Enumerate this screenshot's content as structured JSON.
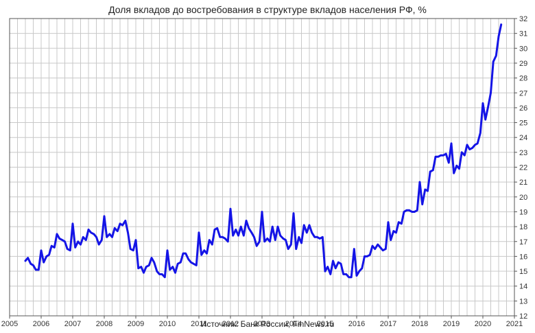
{
  "title": "Доля вкладов до востребования в структуре вкладов населения РФ, %",
  "source": "Источник: Банк России, FinNews.ru",
  "colors": {
    "line": "#1414e6",
    "grid": "#c8c8c8",
    "axis": "#555555"
  },
  "chart_data": {
    "type": "line",
    "title": "Доля вкладов до востребования в структуре вкладов населения РФ, %",
    "xlabel": "",
    "ylabel": "",
    "xlim": [
      2005,
      2021
    ],
    "ylim": [
      12,
      32
    ],
    "y_axis_side": "right",
    "grid": true,
    "x_ticks": [
      "2005",
      "2006",
      "2007",
      "2008",
      "2009",
      "2010",
      "2011",
      "2012",
      "2013",
      "2014",
      "2015",
      "2016",
      "2017",
      "2018",
      "2019",
      "2020",
      "2021"
    ],
    "y_ticks": [
      "12",
      "13",
      "14",
      "15",
      "16",
      "17",
      "18",
      "19",
      "20",
      "21",
      "22",
      "23",
      "24",
      "25",
      "26",
      "27",
      "28",
      "29",
      "30",
      "31",
      "32"
    ],
    "series": [
      {
        "x": [
          2005.5,
          2005.58,
          2005.67,
          2005.75,
          2005.83,
          2005.92,
          2006.0,
          2006.08,
          2006.17,
          2006.25,
          2006.33,
          2006.42,
          2006.5,
          2006.58,
          2006.67,
          2006.75,
          2006.83,
          2006.92,
          2007.0,
          2007.08,
          2007.17,
          2007.25,
          2007.33,
          2007.42,
          2007.5,
          2007.58,
          2007.67,
          2007.75,
          2007.83,
          2007.92,
          2008.0,
          2008.08,
          2008.17,
          2008.25,
          2008.33,
          2008.42,
          2008.5,
          2008.58,
          2008.67,
          2008.75,
          2008.83,
          2008.92,
          2009.0,
          2009.08,
          2009.17,
          2009.25,
          2009.33,
          2009.42,
          2009.5,
          2009.58,
          2009.67,
          2009.75,
          2009.83,
          2009.92,
          2010.0,
          2010.08,
          2010.17,
          2010.25,
          2010.33,
          2010.42,
          2010.5,
          2010.58,
          2010.67,
          2010.75,
          2010.83,
          2010.92,
          2011.0,
          2011.08,
          2011.17,
          2011.25,
          2011.33,
          2011.42,
          2011.5,
          2011.58,
          2011.67,
          2011.75,
          2011.83,
          2011.92,
          2012.0,
          2012.08,
          2012.17,
          2012.25,
          2012.33,
          2012.42,
          2012.5,
          2012.58,
          2012.67,
          2012.75,
          2012.83,
          2012.92,
          2013.0,
          2013.08,
          2013.17,
          2013.25,
          2013.33,
          2013.42,
          2013.5,
          2013.58,
          2013.67,
          2013.75,
          2013.83,
          2013.92,
          2014.0,
          2014.08,
          2014.17,
          2014.25,
          2014.33,
          2014.42,
          2014.5,
          2014.58,
          2014.67,
          2014.75,
          2014.83,
          2014.92,
          2015.0,
          2015.08,
          2015.17,
          2015.25,
          2015.33,
          2015.42,
          2015.5,
          2015.58,
          2015.67,
          2015.75,
          2015.83,
          2015.92,
          2016.0,
          2016.08,
          2016.17,
          2016.25,
          2016.33,
          2016.42,
          2016.5,
          2016.58,
          2016.67,
          2016.75,
          2016.83,
          2016.92,
          2017.0,
          2017.08,
          2017.17,
          2017.25,
          2017.33,
          2017.42,
          2017.5,
          2017.58,
          2017.67,
          2017.75,
          2017.83,
          2017.92,
          2018.0,
          2018.08,
          2018.17,
          2018.25,
          2018.33,
          2018.42,
          2018.5,
          2018.58,
          2018.67,
          2018.75,
          2018.83,
          2018.92,
          2019.0,
          2019.08,
          2019.17,
          2019.25,
          2019.33,
          2019.42,
          2019.5,
          2019.58,
          2019.67,
          2019.75,
          2019.83,
          2019.92,
          2020.0,
          2020.08,
          2020.17,
          2020.25,
          2020.33,
          2020.42,
          2020.5,
          2020.58
        ],
        "values": [
          15.7,
          15.9,
          15.5,
          15.4,
          15.1,
          15.1,
          16.4,
          15.6,
          16.0,
          16.1,
          16.7,
          16.6,
          17.5,
          17.2,
          17.1,
          17.0,
          16.5,
          16.4,
          18.2,
          16.6,
          17.0,
          16.8,
          17.3,
          17.1,
          17.8,
          17.6,
          17.5,
          17.3,
          16.8,
          17.1,
          18.7,
          17.3,
          17.5,
          17.3,
          17.9,
          17.7,
          18.2,
          18.1,
          18.4,
          17.6,
          16.5,
          16.4,
          17.1,
          15.2,
          15.3,
          14.9,
          15.3,
          15.4,
          15.9,
          15.6,
          15.0,
          14.8,
          14.8,
          14.6,
          16.4,
          15.1,
          15.3,
          14.9,
          15.5,
          15.6,
          16.2,
          16.2,
          15.8,
          15.6,
          15.5,
          15.4,
          17.6,
          16.1,
          16.4,
          16.2,
          17.1,
          16.8,
          17.8,
          17.9,
          17.3,
          17.3,
          17.2,
          17.0,
          19.2,
          17.4,
          17.8,
          17.4,
          18.0,
          17.4,
          18.4,
          17.9,
          17.6,
          17.3,
          16.7,
          17.0,
          19.0,
          17.0,
          17.2,
          17.0,
          18.0,
          17.1,
          18.0,
          17.4,
          17.2,
          17.1,
          16.5,
          16.8,
          18.9,
          16.5,
          17.3,
          16.9,
          18.1,
          17.6,
          18.1,
          17.6,
          17.3,
          17.3,
          17.2,
          17.3,
          15.0,
          15.3,
          14.8,
          15.7,
          15.2,
          15.6,
          15.5,
          14.8,
          14.8,
          14.6,
          14.6,
          16.5,
          14.7,
          15.0,
          15.2,
          16.0,
          16.0,
          16.1,
          16.7,
          16.5,
          16.8,
          16.6,
          16.4,
          16.5,
          18.3,
          17.1,
          17.7,
          17.6,
          18.3,
          18.2,
          19.0,
          19.1,
          19.1,
          19.0,
          19.0,
          19.1,
          21.0,
          19.5,
          20.5,
          20.4,
          21.7,
          21.8,
          22.7,
          22.7,
          22.8,
          22.8,
          22.9,
          22.3,
          23.6,
          21.6,
          22.1,
          21.9,
          23.0,
          22.8,
          23.5,
          23.2,
          23.3,
          23.5,
          23.6,
          24.3,
          26.3,
          25.2,
          26.1,
          27.0,
          29.1,
          29.5,
          30.8,
          31.6
        ]
      }
    ]
  }
}
